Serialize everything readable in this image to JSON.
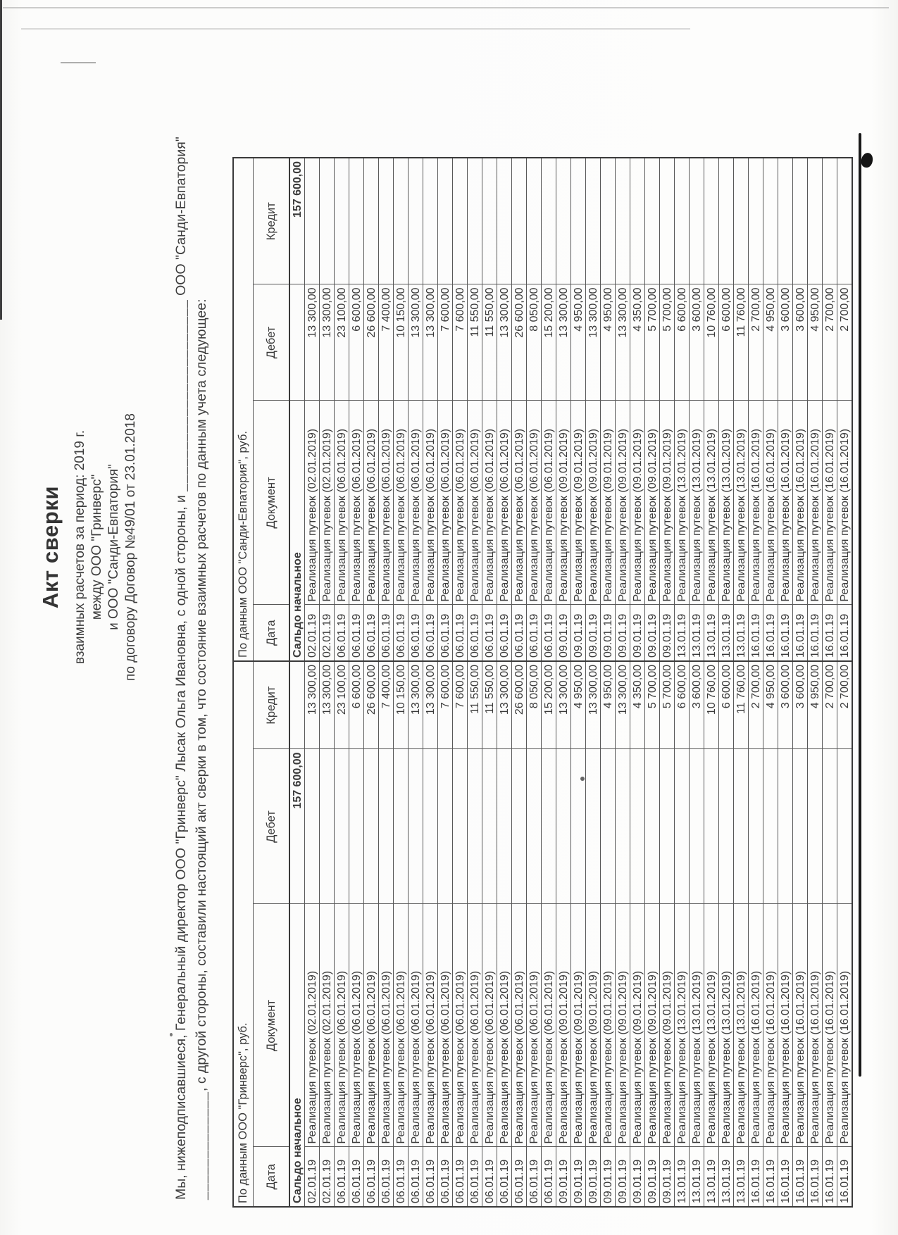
{
  "document": {
    "title": "Акт сверки",
    "subtitle": [
      "взаимных расчетов за период: 2019 г.",
      "между ООО \"Гринверс\"",
      "и ООО \"Санди-Евпатория\"",
      "по договору Договор №49/01 от 23.01.2018"
    ],
    "intro_line1_start": "Мы, нижеподписавшиеся, Генеральный директор ООО \"Гринверс\" Лысак Ольга Ивановна, с одной стороны, и",
    "intro_blank1": "_______________________",
    "intro_line1_end": "ООО \"Санди-Евпатория\"",
    "intro_blank2": "_____________",
    "intro_line2": ", с другой стороны, составили настоящий акт сверки в том, что состояние взаимных расчетов по данным учета следующее:"
  },
  "table": {
    "left_group_header": "По данным ООО \"Гринверс\", руб.",
    "right_group_header": "По данным ООО \"Санди-Евпатория\", руб.",
    "column_labels": {
      "date": "Дата",
      "document": "Документ",
      "debit": "Дебет",
      "credit": "Кредит"
    },
    "opening_balance": {
      "label": "Сальдо начальное",
      "grinvers_debit": "157 600,00",
      "sandi_credit": "157 600,00"
    },
    "transactions": [
      {
        "date": "02.01.19",
        "document": "Реализация путевок (02.01.2019)",
        "amount": "13 300,00"
      },
      {
        "date": "02.01.19",
        "document": "Реализация путевок (02.01.2019)",
        "amount": "13 300,00"
      },
      {
        "date": "06.01.19",
        "document": "Реализация путевок (06.01.2019)",
        "amount": "23 100,00"
      },
      {
        "date": "06.01.19",
        "document": "Реализация путевок (06.01.2019)",
        "amount": "6 600,00"
      },
      {
        "date": "06.01.19",
        "document": "Реализация путевок (06.01.2019)",
        "amount": "26 600,00"
      },
      {
        "date": "06.01.19",
        "document": "Реализация путевок (06.01.2019)",
        "amount": "7 400,00"
      },
      {
        "date": "06.01.19",
        "document": "Реализация путевок (06.01.2019)",
        "amount": "10 150,00"
      },
      {
        "date": "06.01.19",
        "document": "Реализация путевок (06.01.2019)",
        "amount": "13 300,00"
      },
      {
        "date": "06.01.19",
        "document": "Реализация путевок (06.01.2019)",
        "amount": "13 300,00"
      },
      {
        "date": "06.01.19",
        "document": "Реализация путевок (06.01.2019)",
        "amount": "7 600,00"
      },
      {
        "date": "06.01.19",
        "document": "Реализация путевок (06.01.2019)",
        "amount": "7 600,00"
      },
      {
        "date": "06.01.19",
        "document": "Реализация путевок (06.01.2019)",
        "amount": "11 550,00"
      },
      {
        "date": "06.01.19",
        "document": "Реализация путевок (06.01.2019)",
        "amount": "11 550,00"
      },
      {
        "date": "06.01.19",
        "document": "Реализация путевок (06.01.2019)",
        "amount": "13 300,00"
      },
      {
        "date": "06.01.19",
        "document": "Реализация путевок (06.01.2019)",
        "amount": "26 600,00"
      },
      {
        "date": "06.01.19",
        "document": "Реализация путевок (06.01.2019)",
        "amount": "8 050,00"
      },
      {
        "date": "06.01.19",
        "document": "Реализация путевок (06.01.2019)",
        "amount": "15 200,00"
      },
      {
        "date": "09.01.19",
        "document": "Реализация путевок (09.01.2019)",
        "amount": "13 300,00"
      },
      {
        "date": "09.01.19",
        "document": "Реализация путевок (09.01.2019)",
        "amount": "4 950,00"
      },
      {
        "date": "09.01.19",
        "document": "Реализация путевок (09.01.2019)",
        "amount": "13 300,00"
      },
      {
        "date": "09.01.19",
        "document": "Реализация путевок (09.01.2019)",
        "amount": "4 950,00"
      },
      {
        "date": "09.01.19",
        "document": "Реализация путевок (09.01.2019)",
        "amount": "13 300,00"
      },
      {
        "date": "09.01.19",
        "document": "Реализация путевок (09.01.2019)",
        "amount": "4 350,00"
      },
      {
        "date": "09.01.19",
        "document": "Реализация путевок (09.01.2019)",
        "amount": "5 700,00"
      },
      {
        "date": "09.01.19",
        "document": "Реализация путевок (09.01.2019)",
        "amount": "5 700,00"
      },
      {
        "date": "13.01.19",
        "document": "Реализация путевок (13.01.2019)",
        "amount": "6 600,00"
      },
      {
        "date": "13.01.19",
        "document": "Реализация путевок (13.01.2019)",
        "amount": "3 600,00"
      },
      {
        "date": "13.01.19",
        "document": "Реализация путевок (13.01.2019)",
        "amount": "10 760,00"
      },
      {
        "date": "13.01.19",
        "document": "Реализация путевок (13.01.2019)",
        "amount": "6 600,00"
      },
      {
        "date": "13.01.19",
        "document": "Реализация путевок (13.01.2019)",
        "amount": "11 760,00"
      },
      {
        "date": "16.01.19",
        "document": "Реализация путевок (16.01.2019)",
        "amount": "2 700,00"
      },
      {
        "date": "16.01.19",
        "document": "Реализация путевок (16.01.2019)",
        "amount": "4 950,00"
      },
      {
        "date": "16.01.19",
        "document": "Реализация путевок (16.01.2019)",
        "amount": "3 600,00"
      },
      {
        "date": "16.01.19",
        "document": "Реализация путевок (16.01.2019)",
        "amount": "3 600,00"
      },
      {
        "date": "16.01.19",
        "document": "Реализация путевок (16.01.2019)",
        "amount": "4 950,00"
      },
      {
        "date": "16.01.19",
        "document": "Реализация путевок (16.01.2019)",
        "amount": "2 700,00"
      },
      {
        "date": "16.01.19",
        "document": "Реализация путевок (16.01.2019)",
        "amount": "2 700,00"
      }
    ]
  }
}
